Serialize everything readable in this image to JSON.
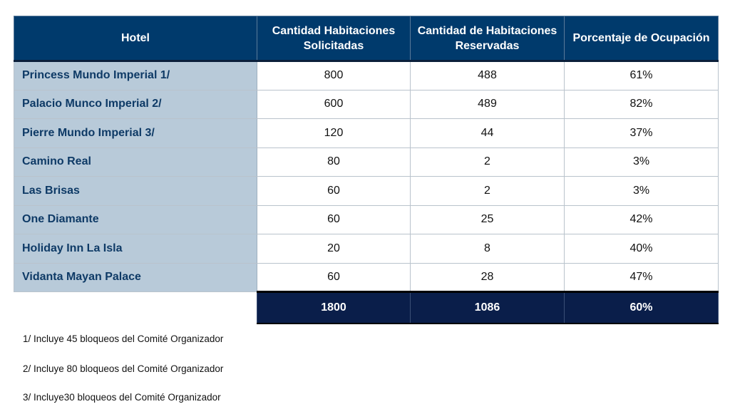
{
  "table": {
    "headers": {
      "hotel": "Hotel",
      "solicitadas": "Cantidad Habitaciones Solicitadas",
      "reservadas": "Cantidad de Habitaciones Reservadas",
      "porcentaje": "Porcentaje de Ocupación"
    },
    "rows": [
      {
        "hotel": "Princess Mundo Imperial 1/",
        "solicitadas": "800",
        "reservadas": "488",
        "porcentaje": "61%"
      },
      {
        "hotel": "Palacio Munco Imperial 2/",
        "solicitadas": "600",
        "reservadas": "489",
        "porcentaje": "82%"
      },
      {
        "hotel": "Pierre Mundo Imperial 3/",
        "solicitadas": "120",
        "reservadas": "44",
        "porcentaje": "37%"
      },
      {
        "hotel": "Camino Real",
        "solicitadas": "80",
        "reservadas": "2",
        "porcentaje": "3%"
      },
      {
        "hotel": "Las Brisas",
        "solicitadas": "60",
        "reservadas": "2",
        "porcentaje": "3%"
      },
      {
        "hotel": "One Diamante",
        "solicitadas": "60",
        "reservadas": "25",
        "porcentaje": "42%"
      },
      {
        "hotel": "Holiday Inn La Isla",
        "solicitadas": "20",
        "reservadas": "8",
        "porcentaje": "40%"
      },
      {
        "hotel": "Vidanta Mayan Palace",
        "solicitadas": "60",
        "reservadas": "28",
        "porcentaje": "47%"
      }
    ],
    "totals": {
      "solicitadas": "1800",
      "reservadas": "1086",
      "porcentaje": "60%"
    }
  },
  "notes": [
    "1/ Incluye  45 bloqueos del Comité Organizador",
    "2/ Incluye 80 bloqueos del Comité Organizador",
    "3/ Incluye30  bloqueos del Comité Organizador"
  ],
  "colors": {
    "header_bg": "#003a6c",
    "hotel_cell_bg": "#b8cad9",
    "hotel_text": "#0e3a66",
    "total_bg": "#0a1e4a"
  }
}
